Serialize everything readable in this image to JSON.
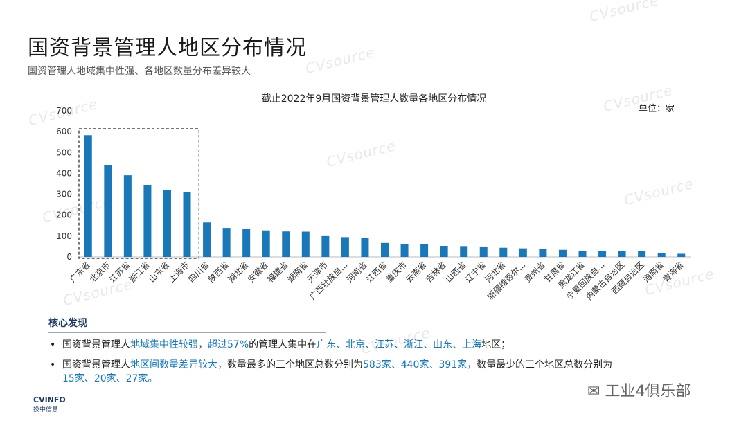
{
  "header": {
    "title": "国资背景管理人地区分布情况",
    "subtitle": "国资管理人地域集中性强、各地区数量分布差异较大"
  },
  "chart_data": {
    "type": "bar",
    "title": "截止2022年9月国资背景管理人数量各地区分布情况",
    "unit_label": "单位：家",
    "categories": [
      "广东省",
      "北京市",
      "江苏省",
      "浙江省",
      "山东省",
      "上海市",
      "四川省",
      "陕西省",
      "湖北省",
      "安徽省",
      "福建省",
      "湖南省",
      "天津市",
      "广西壮族自...",
      "河南省",
      "江西省",
      "重庆市",
      "云南省",
      "吉林省",
      "山西省",
      "辽宁省",
      "河北省",
      "新疆维吾尔...",
      "贵州省",
      "甘肃省",
      "黑龙江省",
      "宁夏回族自...",
      "内蒙古自治区",
      "西藏自治区",
      "海南省",
      "青海省"
    ],
    "values": [
      583,
      440,
      391,
      345,
      319,
      309,
      165,
      139,
      135,
      127,
      122,
      121,
      100,
      95,
      90,
      67,
      62,
      60,
      53,
      52,
      50,
      44,
      41,
      40,
      34,
      30,
      29,
      29,
      27,
      20,
      15
    ],
    "yticks": [
      0,
      100,
      200,
      300,
      400,
      500,
      600,
      700
    ],
    "ylim": [
      0,
      700
    ],
    "bar_color": "#1a78b8",
    "highlight_box_count": 6
  },
  "findings": {
    "heading": "核心发现",
    "item1": {
      "p1": "国资背景管理人",
      "h1": "地域集中性较强",
      "p2": "，",
      "h2": "超过57%",
      "p3": "的管理人集中在",
      "h3": "广东、北京、江苏、浙江、山东、上海",
      "p4": "地区；"
    },
    "item2": {
      "p1": "国资背景管理人",
      "h1": "地区间数量差异较大",
      "p2": "，数量最多的三个地区总数分别为",
      "h2": "583家、440家、391家",
      "p3": "，数量最少的三个地区总数分别为",
      "h3": "15家、20家、27家。"
    }
  },
  "footer": {
    "logo_top": "CVINFO",
    "logo_bottom": "投中信息",
    "wechat_label": "工业4俱乐部"
  },
  "watermark_text": "CVsource"
}
